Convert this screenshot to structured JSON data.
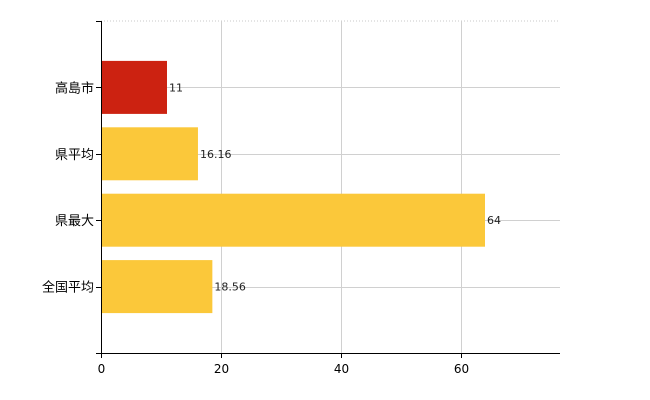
{
  "chart_data": {
    "type": "bar",
    "orientation": "horizontal",
    "categories": [
      "高島市",
      "県平均",
      "県最大",
      "全国平均"
    ],
    "values": [
      11,
      16.16,
      64,
      18.56
    ],
    "value_labels": [
      "11",
      "16.16",
      "64",
      "18.56"
    ],
    "bar_colors": [
      "#cc2211",
      "#fbc83a",
      "#fbc83a",
      "#fbc83a"
    ],
    "xlim": [
      0,
      76.5
    ],
    "xticks": [
      0,
      20,
      40,
      60
    ],
    "xtick_labels": [
      "0",
      "20",
      "40",
      "60"
    ],
    "grid": true,
    "title": "",
    "xlabel": "",
    "ylabel": ""
  }
}
